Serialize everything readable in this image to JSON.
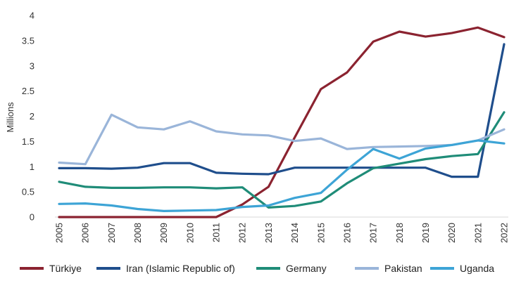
{
  "chart_data": {
    "type": "line",
    "ylabel": "Millions",
    "xlabel": "",
    "ylim": [
      0,
      4
    ],
    "yticks": [
      "0",
      "0.5",
      "1",
      "1.5",
      "2",
      "2.5",
      "3",
      "3.5",
      "4"
    ],
    "x": [
      "2005",
      "2006",
      "2007",
      "2008",
      "2009",
      "2010",
      "2011",
      "2012",
      "2013",
      "2014",
      "2015",
      "2016",
      "2017",
      "2018",
      "2019",
      "2020",
      "2021",
      "2022"
    ],
    "grid": false,
    "legend_position": "bottom",
    "series": [
      {
        "name": "Türkiye",
        "color": "#8b2330",
        "values": [
          0,
          0,
          0,
          0,
          0,
          0,
          0,
          0.25,
          0.6,
          1.58,
          2.54,
          2.87,
          3.48,
          3.68,
          3.58,
          3.65,
          3.76,
          3.57
        ]
      },
      {
        "name": "Iran (Islamic Republic of)",
        "color": "#1f4e8c",
        "values": [
          0.97,
          0.97,
          0.96,
          0.98,
          1.07,
          1.07,
          0.88,
          0.86,
          0.85,
          0.98,
          0.98,
          0.98,
          0.98,
          0.98,
          0.98,
          0.8,
          0.8,
          3.43
        ]
      },
      {
        "name": "Germany",
        "color": "#1f8c78",
        "values": [
          0.7,
          0.6,
          0.58,
          0.58,
          0.59,
          0.59,
          0.57,
          0.59,
          0.19,
          0.22,
          0.31,
          0.67,
          0.97,
          1.06,
          1.15,
          1.21,
          1.25,
          2.08
        ]
      },
      {
        "name": "Pakistan",
        "color": "#9ab5d9",
        "values": [
          1.08,
          1.05,
          2.03,
          1.78,
          1.74,
          1.9,
          1.7,
          1.64,
          1.62,
          1.51,
          1.56,
          1.35,
          1.39,
          1.4,
          1.41,
          1.43,
          1.52,
          1.74
        ]
      },
      {
        "name": "Uganda",
        "color": "#3da4d6",
        "values": [
          0.26,
          0.27,
          0.23,
          0.16,
          0.12,
          0.13,
          0.14,
          0.2,
          0.23,
          0.38,
          0.48,
          0.94,
          1.35,
          1.16,
          1.36,
          1.43,
          1.52,
          1.46
        ]
      }
    ]
  }
}
